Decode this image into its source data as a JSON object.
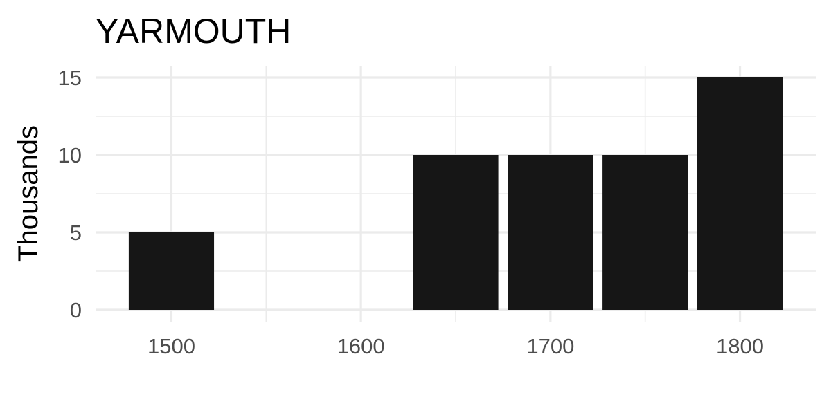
{
  "chart_data": {
    "type": "bar",
    "title": "YARMOUTH",
    "xlabel": "",
    "ylabel": "Thousands",
    "x": [
      1500,
      1650,
      1700,
      1750,
      1800
    ],
    "values": [
      5,
      10,
      10,
      10,
      15
    ],
    "bar_width": 45,
    "xlim": [
      1460,
      1840
    ],
    "ylim": [
      0,
      15
    ],
    "x_ticks": [
      1500,
      1600,
      1700,
      1800
    ],
    "x_minor_ticks": [
      1550,
      1650,
      1750
    ],
    "y_ticks": [
      0,
      5,
      10,
      15
    ],
    "y_minor_ticks": [
      2.5,
      7.5,
      12.5
    ],
    "grid": true,
    "bar_color": "#161616",
    "grid_color": "#ebebeb",
    "tick_label_color": "#4d4d4d"
  }
}
